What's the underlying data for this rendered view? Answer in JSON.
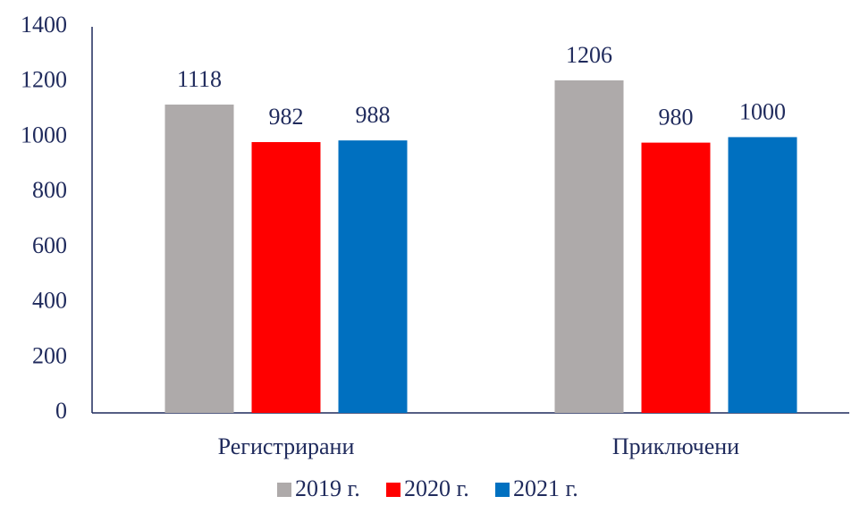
{
  "chart_data": {
    "type": "bar",
    "categories": [
      "Регистрирани",
      "Приключени"
    ],
    "series": [
      {
        "name": "2019 г.",
        "color": "#aeaaaa",
        "values": [
          1118,
          1206
        ]
      },
      {
        "name": "2020 г.",
        "color": "#ff0000",
        "values": [
          982,
          980
        ]
      },
      {
        "name": "2021 г.",
        "color": "#0070c0",
        "values": [
          988,
          1000
        ]
      }
    ],
    "ylim": [
      0,
      1400
    ],
    "yticks": [
      0,
      200,
      400,
      600,
      800,
      1000,
      1200,
      1400
    ],
    "grid": false,
    "legend": "bottom"
  }
}
